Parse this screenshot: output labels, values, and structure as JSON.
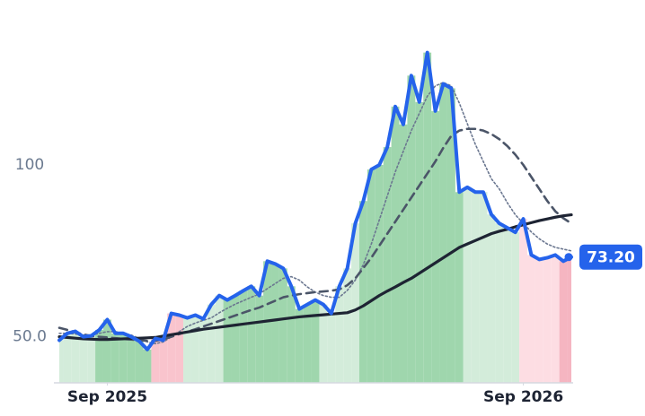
{
  "chart_data": {
    "type": "line",
    "x": [
      0,
      1,
      2,
      3,
      4,
      5,
      6,
      7,
      8,
      9,
      10,
      11,
      12,
      13,
      14,
      15,
      16,
      17,
      18,
      19,
      20,
      21,
      22,
      23,
      24,
      25,
      26,
      27,
      28,
      29,
      30,
      31,
      32,
      33,
      34,
      35,
      36,
      37,
      38,
      39,
      40,
      41,
      42,
      43,
      44,
      45,
      46,
      47,
      48,
      49,
      50,
      51,
      52,
      53,
      54,
      55,
      56,
      57,
      58,
      59,
      60,
      61,
      62,
      63,
      64
    ],
    "xlim": [
      0,
      64
    ],
    "xticks": [
      {
        "value": 6,
        "label": "Sep 2025"
      },
      {
        "value": 58,
        "label": "Sep 2026"
      }
    ],
    "ylim": [
      36.6,
      148
    ],
    "yticks": [
      {
        "value": 50,
        "label": "50.0"
      },
      100
    ],
    "fill_colors": [
      "#d3ecda",
      "#d3ecda",
      "#d3ecda",
      "#d3ecda",
      "#d3ecda",
      "#9fd6ad",
      "#9fd6ad",
      "#9fd6ad",
      "#9fd6ad",
      "#9fd6ad",
      "#9fd6ad",
      "#9fd6ad",
      "#f9c4cd",
      "#f9c4cd",
      "#f9c4cd",
      "#f9c4cd",
      "#d3ecda",
      "#d3ecda",
      "#d3ecda",
      "#d3ecda",
      "#d3ecda",
      "#9fd6ad",
      "#9fd6ad",
      "#9fd6ad",
      "#9fd6ad",
      "#9fd6ad",
      "#9fd6ad",
      "#9fd6ad",
      "#9fd6ad",
      "#9fd6ad",
      "#9fd6ad",
      "#9fd6ad",
      "#9fd6ad",
      "#d3ecda",
      "#d3ecda",
      "#d3ecda",
      "#d3ecda",
      "#d3ecda",
      "#9fd6ad",
      "#9fd6ad",
      "#9fd6ad",
      "#9fd6ad",
      "#9fd6ad",
      "#9fd6ad",
      "#9fd6ad",
      "#9fd6ad",
      "#9fd6ad",
      "#9fd6ad",
      "#9fd6ad",
      "#9fd6ad",
      "#9fd6ad",
      "#d3ecda",
      "#d3ecda",
      "#d3ecda",
      "#d3ecda",
      "#d3ecda",
      "#d3ecda",
      "#d3ecda",
      "#fddde3",
      "#fddde3",
      "#fddde3",
      "#fddde3",
      "#fddde3",
      "#f5b5c1",
      "#f5b5c1"
    ],
    "series": [
      {
        "color": "#6b7790",
        "style": "dotted",
        "values": [
          51,
          51,
          50.8,
          50.5,
          50.5,
          51,
          51.5,
          51.5,
          51,
          50.5,
          49.5,
          48.5,
          48,
          48.5,
          50,
          51.5,
          53,
          54,
          54.8,
          55.5,
          57,
          58.3,
          59.5,
          60.5,
          61.5,
          62.5,
          64,
          65.5,
          67,
          67.5,
          66.5,
          64.5,
          63,
          62,
          61.5,
          61.5,
          63.5,
          66.5,
          71,
          77,
          84,
          91,
          98,
          104,
          110,
          115,
          120,
          123,
          124,
          123,
          118,
          112,
          106,
          101,
          96,
          93,
          89,
          85.5,
          83,
          80.5,
          78.5,
          77,
          76,
          75.5,
          75
        ]
      },
      {
        "color": "#4b5568",
        "style": "dashed",
        "values": [
          52.6,
          52,
          51.3,
          50.7,
          50.2,
          50,
          49.8,
          49.6,
          49.4,
          49.2,
          49,
          48.8,
          48.8,
          49.3,
          50,
          50.8,
          51.5,
          52.2,
          53,
          53.8,
          54.6,
          55.4,
          56.2,
          57,
          57.8,
          58.5,
          59.5,
          60.5,
          61.5,
          62,
          62.4,
          62.7,
          63,
          63.2,
          63.4,
          63.8,
          65,
          67,
          70,
          73,
          76.5,
          80,
          83.5,
          87,
          90.5,
          94,
          97.5,
          101,
          105,
          108.5,
          110,
          110.5,
          110.5,
          110,
          109,
          107.5,
          105.5,
          103,
          100,
          96.5,
          93,
          89.5,
          86.5,
          84.5,
          83
        ]
      },
      {
        "color": "#1e2433",
        "style": "solid",
        "values": [
          50,
          49.8,
          49.6,
          49.4,
          49.3,
          49.2,
          49.2,
          49.3,
          49.4,
          49.5,
          49.6,
          49.7,
          49.8,
          50.2,
          50.6,
          51,
          51.4,
          51.8,
          52.2,
          52.5,
          52.8,
          53.1,
          53.4,
          53.7,
          54,
          54.3,
          54.6,
          54.9,
          55.2,
          55.5,
          55.8,
          56,
          56.2,
          56.4,
          56.6,
          56.8,
          57,
          57.8,
          59,
          60.5,
          62,
          63.3,
          64.5,
          65.8,
          67,
          68.5,
          70,
          71.5,
          73,
          74.5,
          76,
          77,
          78,
          79,
          80,
          80.7,
          81.3,
          82,
          82.6,
          83.2,
          83.8,
          84.3,
          84.8,
          85.2,
          85.5
        ]
      },
      {
        "color": "#2563eb",
        "style": "price",
        "values": [
          49,
          51,
          51.6,
          50,
          50.3,
          52,
          55,
          51,
          51,
          50,
          48.7,
          46.3,
          49.5,
          49,
          56.8,
          56.3,
          55.5,
          56.3,
          55.2,
          59.4,
          62,
          60.7,
          62,
          63.4,
          64.7,
          62,
          72,
          71.2,
          69.9,
          64.7,
          58.1,
          59.4,
          60.7,
          59.4,
          56.8,
          64.7,
          69.9,
          83,
          89.5,
          98.7,
          100,
          105.2,
          117,
          111.8,
          126,
          118.3,
          132.7,
          115.7,
          123.6,
          122.3,
          92.1,
          93.5,
          92.1,
          92.1,
          85.6,
          83,
          81.7,
          80.4,
          84.3,
          73.8,
          72.5,
          73,
          73.8,
          72,
          73.2
        ],
        "last_label": "73.20"
      }
    ]
  }
}
